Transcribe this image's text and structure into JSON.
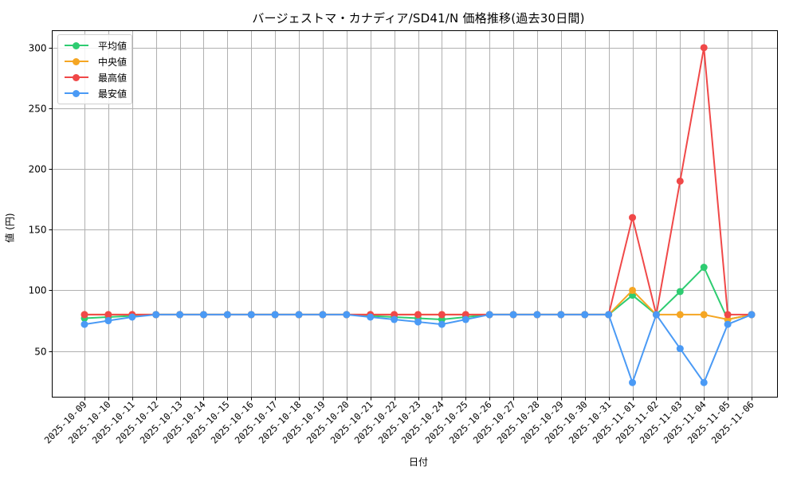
{
  "chart_data": {
    "type": "line",
    "title": "バージェストマ・カナディア/SD41/N 価格推移(過去30日間)",
    "xlabel": "日付",
    "ylabel": "値 (円)",
    "ylim": [
      12,
      314
    ],
    "yticks": [
      50,
      100,
      150,
      200,
      250,
      300
    ],
    "grid": true,
    "legend_position": "upper left",
    "categories": [
      "2025-10-09",
      "2025-10-10",
      "2025-10-11",
      "2025-10-12",
      "2025-10-13",
      "2025-10-14",
      "2025-10-15",
      "2025-10-16",
      "2025-10-17",
      "2025-10-18",
      "2025-10-19",
      "2025-10-20",
      "2025-10-21",
      "2025-10-22",
      "2025-10-23",
      "2025-10-24",
      "2025-10-25",
      "2025-10-26",
      "2025-10-27",
      "2025-10-28",
      "2025-10-29",
      "2025-10-30",
      "2025-10-31",
      "2025-11-01",
      "2025-11-02",
      "2025-11-03",
      "2025-11-04",
      "2025-11-05",
      "2025-11-06"
    ],
    "series": [
      {
        "name": "平均値",
        "color": "#2ecc71",
        "values": [
          77,
          78,
          79,
          80,
          80,
          80,
          80,
          80,
          80,
          80,
          80,
          80,
          79,
          78,
          77,
          76,
          78,
          80,
          80,
          80,
          80,
          80,
          80,
          96,
          80,
          99,
          119,
          76,
          80
        ]
      },
      {
        "name": "中央値",
        "color": "#f5a623",
        "values": [
          80,
          80,
          80,
          80,
          80,
          80,
          80,
          80,
          80,
          80,
          80,
          80,
          80,
          80,
          80,
          80,
          80,
          80,
          80,
          80,
          80,
          80,
          80,
          100,
          80,
          80,
          80,
          76,
          80
        ]
      },
      {
        "name": "最高値",
        "color": "#f04848",
        "values": [
          80,
          80,
          80,
          80,
          80,
          80,
          80,
          80,
          80,
          80,
          80,
          80,
          80,
          80,
          80,
          80,
          80,
          80,
          80,
          80,
          80,
          80,
          80,
          160,
          80,
          190,
          300,
          80,
          80
        ]
      },
      {
        "name": "最安値",
        "color": "#4a9af5",
        "values": [
          72,
          75,
          78,
          80,
          80,
          80,
          80,
          80,
          80,
          80,
          80,
          80,
          78,
          76,
          74,
          72,
          76,
          80,
          80,
          80,
          80,
          80,
          80,
          24,
          80,
          52,
          24,
          72,
          80
        ]
      }
    ]
  }
}
